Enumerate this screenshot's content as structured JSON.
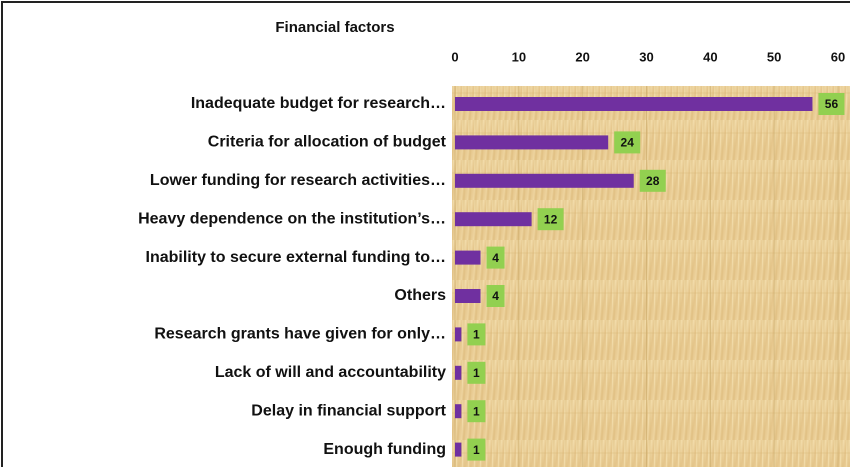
{
  "chart_data": {
    "type": "bar",
    "orientation": "horizontal",
    "title": "Financial factors",
    "categories": [
      "Inadequate budget for research…",
      "Criteria for allocation of budget",
      "Lower funding for research activities…",
      "Heavy dependence on the institution’s…",
      "Inability to secure external funding to…",
      "Others",
      "Research grants have given for only…",
      "Lack of will and accountability",
      "Delay in financial support",
      "Enough funding"
    ],
    "values": [
      56,
      24,
      28,
      12,
      4,
      4,
      1,
      1,
      1,
      1
    ],
    "color": "#7030a0",
    "label_color": "#92d050",
    "xlim": [
      0,
      60
    ],
    "xticks": [
      0,
      10,
      20,
      30,
      40,
      50,
      60
    ],
    "grid": true
  }
}
